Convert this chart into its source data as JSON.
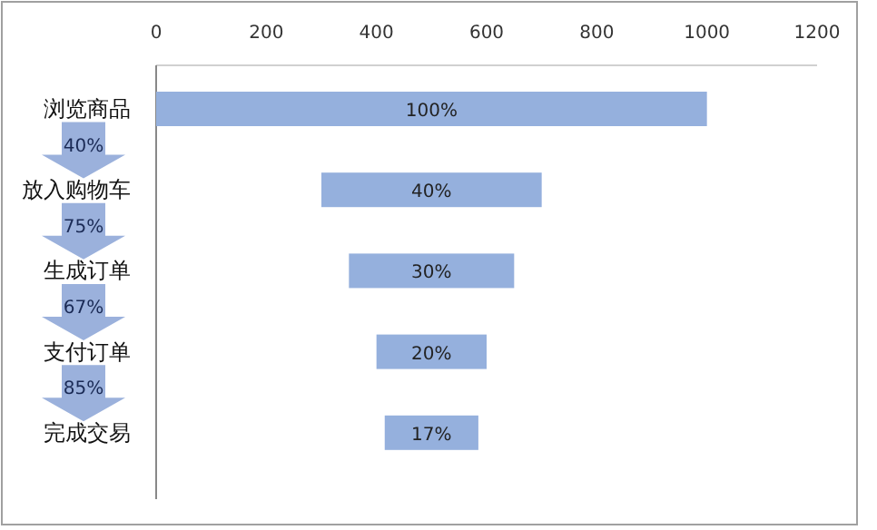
{
  "chart_data": {
    "type": "bar",
    "orientation": "horizontal",
    "categories": [
      "浏览商品",
      "放入购物车",
      "生成订单",
      "支付订单",
      "完成交易"
    ],
    "values": [
      1000,
      400,
      300,
      200,
      170
    ],
    "base": [
      0,
      300,
      350,
      400,
      415
    ],
    "color": "#95b0dd",
    "xlim": [
      0,
      1200
    ],
    "xticks": [
      0,
      200,
      400,
      600,
      800,
      1000,
      1200
    ],
    "annotations": [
      "100%",
      "40%",
      "30%",
      "20%",
      "17%",
      "40%",
      "75%",
      "67%",
      "85%"
    ]
  }
}
